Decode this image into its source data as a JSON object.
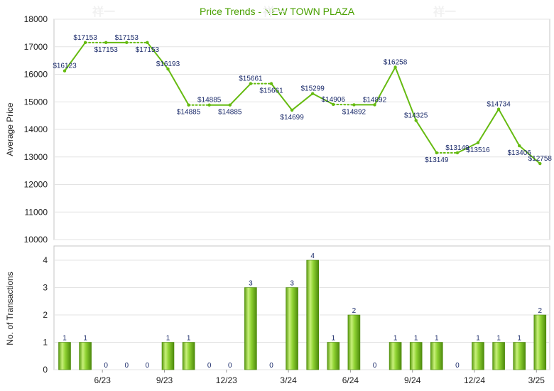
{
  "chart_data": [
    {
      "type": "line",
      "title": "Price Trends - NEW TOWN PLAZA",
      "ylabel": "Average Price",
      "ylim": [
        10000,
        18000
      ],
      "yticks": [
        "18000",
        "17000",
        "16000",
        "15000",
        "14000",
        "13000",
        "12000",
        "11000",
        "10000"
      ],
      "grid": true,
      "line_color": "#66bb11",
      "values": [
        16123,
        17153,
        17153,
        17153,
        17153,
        16193,
        14885,
        14885,
        14885,
        15661,
        15661,
        14699,
        15299,
        14906,
        14892,
        14892,
        16258,
        14325,
        13149,
        13149,
        13516,
        14734,
        13406,
        12758
      ],
      "labels": [
        "$16123",
        "$17153",
        "$17153",
        "$17153",
        "$17153",
        "$16193",
        "$14885",
        "$14885",
        "$14885",
        "$15661",
        "$15661",
        "$14699",
        "$15299",
        "$14906",
        "$14892",
        "$14892",
        "$16258",
        "$14325",
        "$13149",
        "$13149",
        "$13516",
        "$14734",
        "$13406",
        "$12758"
      ],
      "carried": [
        false,
        false,
        true,
        false,
        true,
        false,
        false,
        true,
        false,
        false,
        true,
        false,
        false,
        false,
        true,
        false,
        false,
        false,
        false,
        true,
        false,
        false,
        false,
        false
      ]
    },
    {
      "type": "bar",
      "ylabel": "No. of Transactions",
      "ylim": [
        0,
        4
      ],
      "yticks": [
        "4",
        "3",
        "2",
        "1",
        "0"
      ],
      "x_tick_labels": [
        "6/23",
        "9/23",
        "12/23",
        "3/24",
        "6/24",
        "9/24",
        "12/24",
        "3/25"
      ],
      "grid": true,
      "bar_color": "#77c022",
      "values": [
        1,
        1,
        0,
        0,
        0,
        1,
        1,
        0,
        0,
        3,
        0,
        3,
        4,
        1,
        2,
        0,
        1,
        1,
        1,
        0,
        1,
        1,
        1,
        2
      ],
      "labels": [
        "1",
        "1",
        "0",
        "0",
        "0",
        "1",
        "1",
        "0",
        "0",
        "3",
        "0",
        "3",
        "4",
        "1",
        "2",
        "0",
        "1",
        "1",
        "1",
        "0",
        "1",
        "1",
        "1",
        "2"
      ]
    }
  ],
  "watermark": "祥一"
}
